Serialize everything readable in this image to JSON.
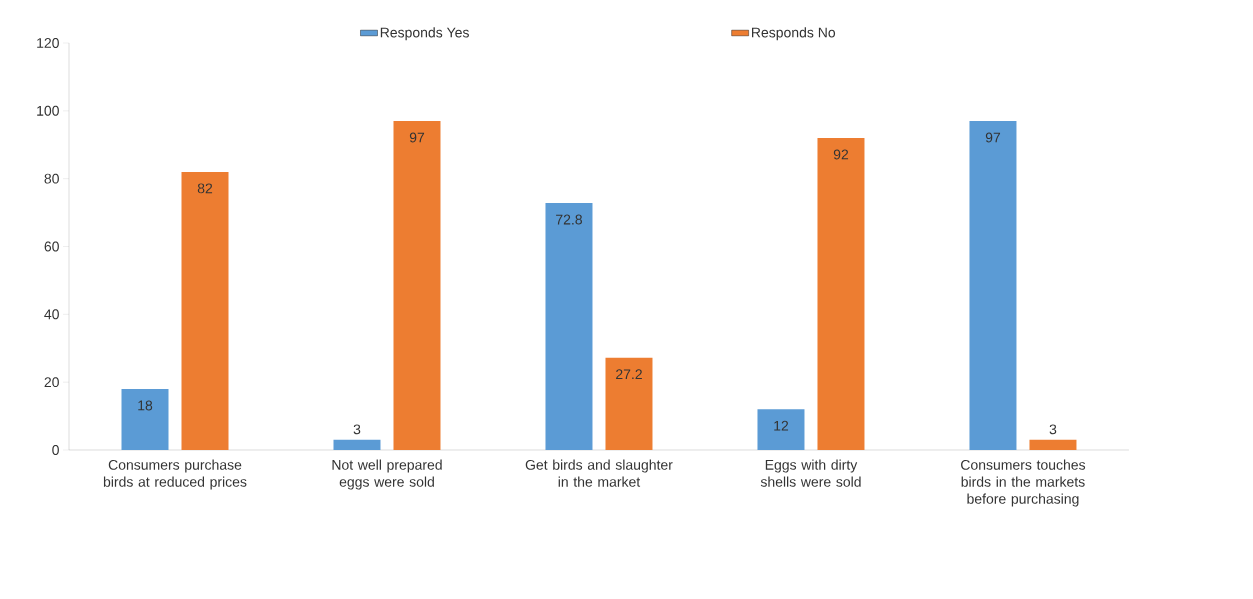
{
  "chart_data": {
    "type": "bar",
    "categories": [
      "Consumers purchase birds at reduced prices",
      "Not well prepared eggs were sold",
      "Get birds and slaughter in the market",
      "Eggs with dirty shells were sold",
      "Consumers touches birds in the markets before purchasing"
    ],
    "series": [
      {
        "name": "Responds Yes",
        "color": "#5b9bd5",
        "values": [
          18,
          3,
          72.8,
          12,
          97
        ]
      },
      {
        "name": "Responds No",
        "color": "#ed7d31",
        "values": [
          82,
          97,
          27.2,
          92,
          3
        ]
      }
    ],
    "ylim": [
      0,
      120
    ],
    "yticks": [
      0,
      20,
      40,
      60,
      80,
      100,
      120
    ],
    "grid": false,
    "legend": "top",
    "data_labels": true
  }
}
